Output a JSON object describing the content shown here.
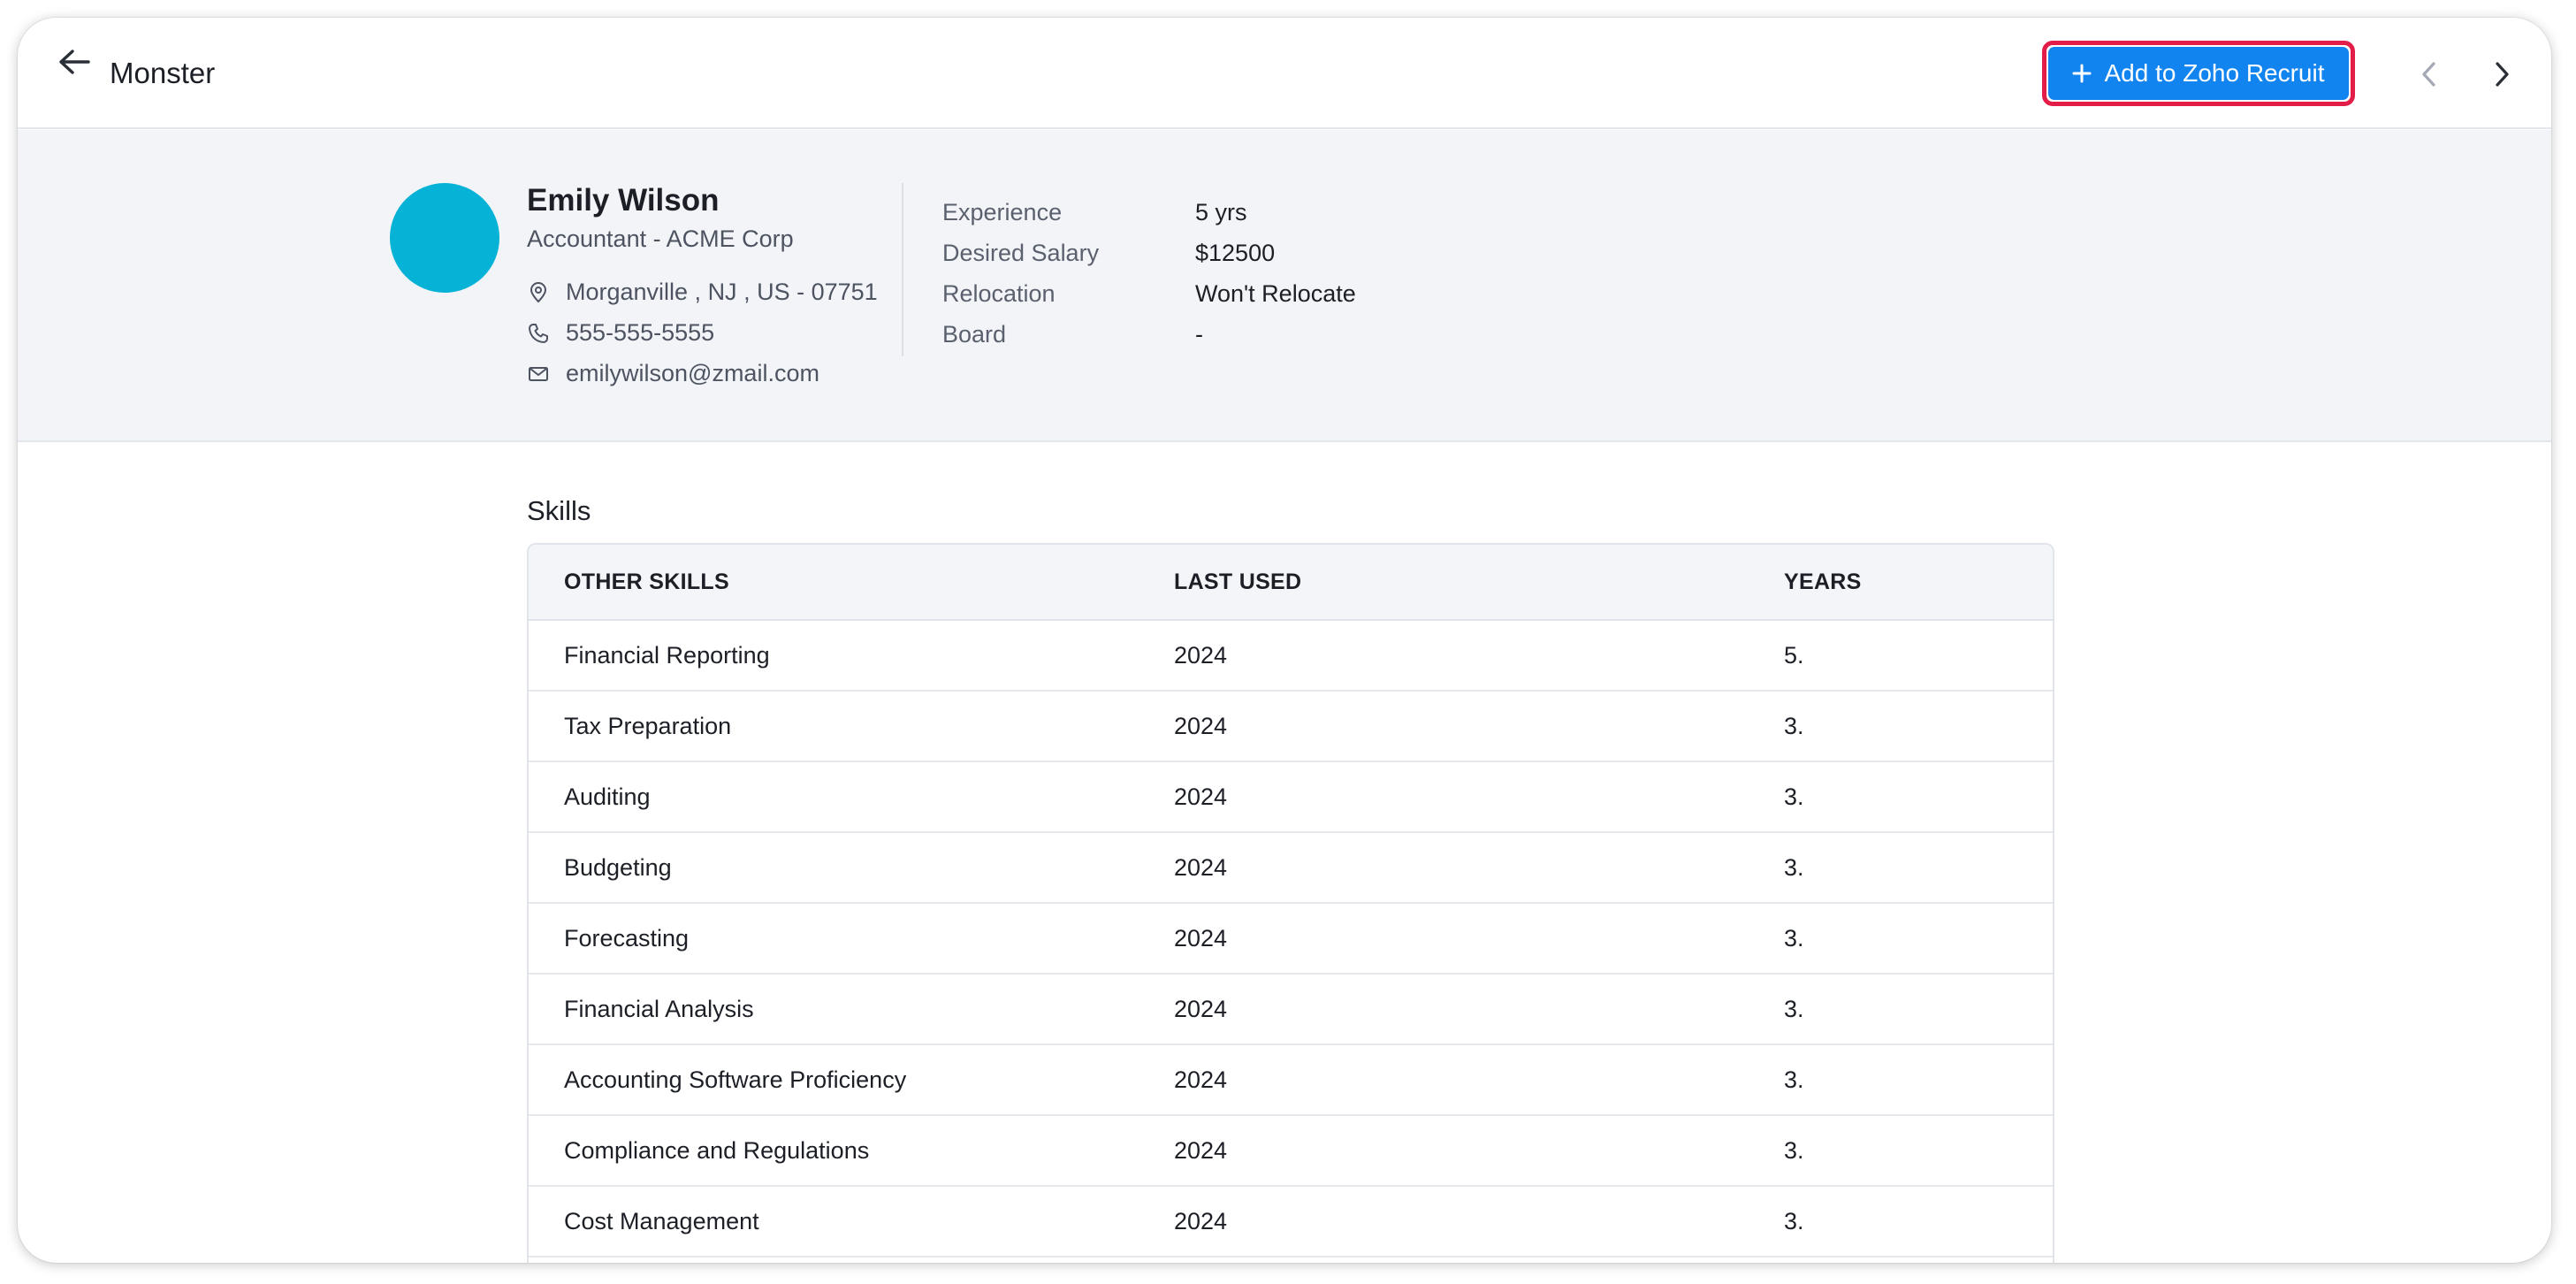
{
  "header": {
    "source_title": "Monster",
    "add_button_label": "Add to Zoho Recruit"
  },
  "candidate": {
    "name": "Emily Wilson",
    "title": "Accountant - ACME Corp",
    "location": "Morganville , NJ , US - 07751",
    "phone": "555-555-5555",
    "email": "emilywilson@zmail.com",
    "avatar_color": "#06b2d6"
  },
  "details": [
    {
      "label": "Experience",
      "value": "5 yrs"
    },
    {
      "label": "Desired Salary",
      "value": "$12500"
    },
    {
      "label": "Relocation",
      "value": "Won't Relocate"
    },
    {
      "label": "Board",
      "value": "-"
    }
  ],
  "skills": {
    "heading": "Skills",
    "columns": [
      "OTHER SKILLS",
      "LAST USED",
      "YEARS"
    ],
    "rows": [
      {
        "skill": "Financial Reporting",
        "last_used": "2024",
        "years": "5."
      },
      {
        "skill": "Tax Preparation",
        "last_used": "2024",
        "years": "3."
      },
      {
        "skill": "Auditing",
        "last_used": "2024",
        "years": "3."
      },
      {
        "skill": "Budgeting",
        "last_used": "2024",
        "years": "3."
      },
      {
        "skill": "Forecasting",
        "last_used": "2024",
        "years": "3."
      },
      {
        "skill": "Financial Analysis",
        "last_used": "2024",
        "years": "3."
      },
      {
        "skill": "Accounting Software Proficiency",
        "last_used": "2024",
        "years": "3."
      },
      {
        "skill": "Compliance and Regulations",
        "last_used": "2024",
        "years": "3."
      },
      {
        "skill": "Cost Management",
        "last_used": "2024",
        "years": "3."
      }
    ]
  },
  "icons": {
    "back": "arrow-left-icon",
    "add": "plus-icon",
    "prev": "chevron-left-icon",
    "next": "chevron-right-icon",
    "location": "location-pin-icon",
    "phone": "phone-icon",
    "email": "mail-icon"
  },
  "colors": {
    "accent": "#1184f0",
    "highlight_border": "#e11d48",
    "profile_bg": "#f2f4f8"
  }
}
